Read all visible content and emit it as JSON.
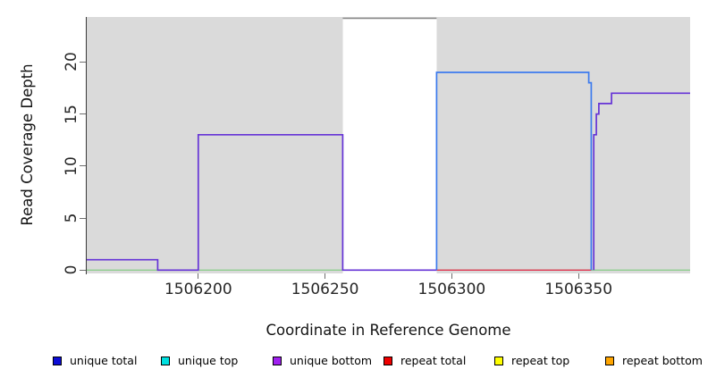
{
  "chart_data": {
    "type": "line",
    "title": "",
    "xlabel": "Coordinate in Reference Genome",
    "ylabel": "Read Coverage Depth",
    "xlim": [
      1506156,
      1506394
    ],
    "ylim": [
      0,
      24.3
    ],
    "x_ticks": [
      1506200,
      1506250,
      1506300,
      1506350
    ],
    "y_ticks": [
      0,
      5,
      10,
      15,
      20
    ],
    "grid": false,
    "panel_background": "#dadada",
    "masked_region": {
      "x0": 1506257,
      "x1": 1506294,
      "color": "#ffffff"
    },
    "series": [
      {
        "name": "baseline-zero-left",
        "color": "#8fce8f",
        "width": 1.4,
        "points": [
          [
            1506156,
            0
          ],
          [
            1506257,
            0
          ]
        ]
      },
      {
        "name": "baseline-zero-right",
        "color": "#8fce8f",
        "width": 1.4,
        "points": [
          [
            1506294,
            0
          ],
          [
            1506394,
            0
          ]
        ]
      },
      {
        "name": "repeat-total-zero",
        "color": "#e03550",
        "width": 1.4,
        "points": [
          [
            1506294,
            0
          ],
          [
            1506355,
            0
          ]
        ]
      },
      {
        "name": "unique-coverage-left",
        "color": "#6533d6",
        "width": 1.7,
        "points": [
          [
            1506156,
            1
          ],
          [
            1506184,
            1
          ],
          [
            1506184,
            0
          ],
          [
            1506200,
            0
          ],
          [
            1506200,
            13
          ],
          [
            1506257,
            13
          ],
          [
            1506257,
            0
          ],
          [
            1506294,
            0
          ]
        ]
      },
      {
        "name": "offscale-clipped-segment",
        "color": "#8a8a8a",
        "width": 1.7,
        "points": [
          [
            1506257,
            24.2
          ],
          [
            1506294,
            24.2
          ]
        ]
      },
      {
        "name": "unique-total-block",
        "color": "#3d7bee",
        "width": 1.7,
        "points": [
          [
            1506294,
            0
          ],
          [
            1506294,
            19
          ],
          [
            1506354,
            19
          ],
          [
            1506354,
            18
          ],
          [
            1506355,
            18
          ],
          [
            1506355,
            0
          ]
        ]
      },
      {
        "name": "unique-coverage-right",
        "color": "#6533d6",
        "width": 1.7,
        "points": [
          [
            1506356,
            0
          ],
          [
            1506356,
            13
          ],
          [
            1506357,
            13
          ],
          [
            1506357,
            15
          ],
          [
            1506358,
            15
          ],
          [
            1506358,
            16
          ],
          [
            1506363,
            16
          ],
          [
            1506363,
            17
          ],
          [
            1506394,
            17
          ]
        ]
      }
    ],
    "legend": {
      "position": "bottom",
      "items": [
        {
          "label": "unique total",
          "color": "#0d0dd6"
        },
        {
          "label": "unique top",
          "color": "#00e0e0"
        },
        {
          "label": "unique bottom",
          "color": "#a020f0"
        },
        {
          "label": "repeat total",
          "color": "#ee0000"
        },
        {
          "label": "repeat top",
          "color": "#ffff00"
        },
        {
          "label": "repeat bottom",
          "color": "#ffa500"
        }
      ]
    }
  }
}
